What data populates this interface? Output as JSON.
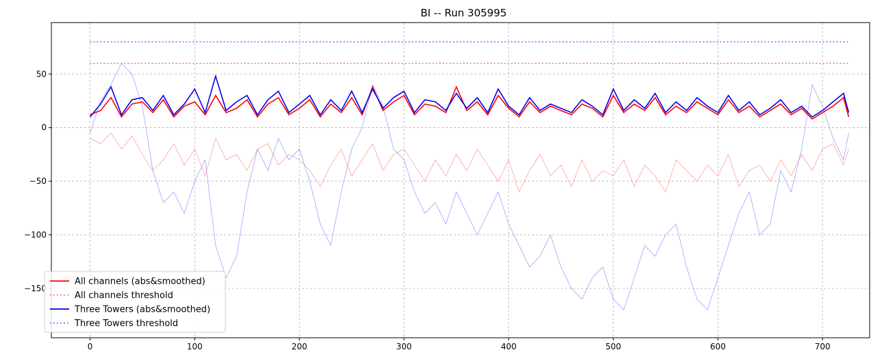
{
  "chart_data": {
    "type": "line",
    "title": "BI -- Run 305995",
    "xlabel": "",
    "ylabel": "",
    "xlim": [
      -37,
      745
    ],
    "ylim": [
      -196,
      98
    ],
    "xticks": [
      0,
      100,
      200,
      300,
      400,
      500,
      600,
      700
    ],
    "yticks": [
      -150,
      -100,
      -50,
      0,
      50
    ],
    "grid": true,
    "legend_position": "lower-left",
    "series": [
      {
        "name": "All channels (abs&smoothed)",
        "color": "#ff0000",
        "style": "solid",
        "x": [
          0,
          10,
          20,
          30,
          40,
          50,
          60,
          70,
          80,
          90,
          100,
          110,
          120,
          130,
          140,
          150,
          160,
          170,
          180,
          190,
          200,
          210,
          220,
          230,
          240,
          250,
          260,
          270,
          280,
          290,
          300,
          310,
          320,
          330,
          340,
          350,
          360,
          370,
          380,
          390,
          400,
          410,
          420,
          430,
          440,
          450,
          460,
          470,
          480,
          490,
          500,
          510,
          520,
          530,
          540,
          550,
          560,
          570,
          580,
          590,
          600,
          610,
          620,
          630,
          640,
          650,
          660,
          670,
          680,
          690,
          700,
          710,
          720,
          725
        ],
        "values": [
          12,
          16,
          28,
          10,
          22,
          24,
          14,
          26,
          10,
          20,
          24,
          12,
          30,
          14,
          18,
          26,
          10,
          22,
          28,
          12,
          18,
          26,
          10,
          22,
          14,
          28,
          12,
          38,
          16,
          24,
          30,
          12,
          22,
          20,
          14,
          38,
          16,
          24,
          12,
          30,
          18,
          10,
          24,
          14,
          20,
          16,
          12,
          22,
          18,
          10,
          30,
          14,
          22,
          16,
          28,
          12,
          20,
          14,
          24,
          18,
          12,
          26,
          14,
          20,
          10,
          16,
          22,
          12,
          18,
          8,
          14,
          20,
          28,
          10
        ]
      },
      {
        "name": "All channels threshold",
        "color": "#ff6666",
        "style": "dotted",
        "x": [
          0,
          725
        ],
        "values": [
          60,
          60
        ]
      },
      {
        "name": "Three Towers (abs&smoothed)",
        "color": "#0000ee",
        "style": "solid",
        "x": [
          0,
          10,
          20,
          30,
          40,
          50,
          60,
          70,
          80,
          90,
          100,
          110,
          120,
          130,
          140,
          150,
          160,
          170,
          180,
          190,
          200,
          210,
          220,
          230,
          240,
          250,
          260,
          270,
          280,
          290,
          300,
          310,
          320,
          330,
          340,
          350,
          360,
          370,
          380,
          390,
          400,
          410,
          420,
          430,
          440,
          450,
          460,
          470,
          480,
          490,
          500,
          510,
          520,
          530,
          540,
          550,
          560,
          570,
          580,
          590,
          600,
          610,
          620,
          630,
          640,
          650,
          660,
          670,
          680,
          690,
          700,
          710,
          720,
          725
        ],
        "values": [
          10,
          22,
          38,
          12,
          26,
          28,
          16,
          30,
          12,
          22,
          36,
          14,
          48,
          16,
          24,
          30,
          12,
          26,
          34,
          14,
          22,
          30,
          12,
          26,
          16,
          34,
          14,
          36,
          18,
          28,
          34,
          14,
          26,
          24,
          16,
          32,
          18,
          28,
          14,
          36,
          20,
          12,
          28,
          16,
          22,
          18,
          14,
          26,
          20,
          12,
          36,
          16,
          26,
          18,
          32,
          14,
          24,
          16,
          28,
          20,
          14,
          30,
          16,
          24,
          12,
          18,
          26,
          14,
          20,
          10,
          16,
          24,
          32,
          14
        ]
      },
      {
        "name": "Three Towers threshold",
        "color": "#6666ff",
        "style": "dotted",
        "x": [
          0,
          725
        ],
        "values": [
          80,
          80
        ]
      },
      {
        "name": "",
        "color": "#ff8080",
        "style": "thin",
        "x": [
          0,
          10,
          20,
          30,
          40,
          50,
          60,
          70,
          80,
          90,
          100,
          110,
          120,
          130,
          140,
          150,
          160,
          170,
          180,
          190,
          200,
          210,
          220,
          230,
          240,
          250,
          260,
          270,
          280,
          290,
          300,
          310,
          320,
          330,
          340,
          350,
          360,
          370,
          380,
          390,
          400,
          410,
          420,
          430,
          440,
          450,
          460,
          470,
          480,
          490,
          500,
          510,
          520,
          530,
          540,
          550,
          560,
          570,
          580,
          590,
          600,
          610,
          620,
          630,
          640,
          650,
          660,
          670,
          680,
          690,
          700,
          710,
          720,
          725
        ],
        "values": [
          -10,
          -15,
          -5,
          -20,
          -8,
          -25,
          -40,
          -30,
          -15,
          -35,
          -20,
          -45,
          -10,
          -30,
          -25,
          -40,
          -20,
          -15,
          -35,
          -25,
          -30,
          -40,
          -55,
          -35,
          -20,
          -45,
          -30,
          -15,
          -40,
          -25,
          -20,
          -35,
          -50,
          -30,
          -45,
          -25,
          -40,
          -20,
          -35,
          -50,
          -30,
          -60,
          -40,
          -25,
          -45,
          -35,
          -55,
          -30,
          -50,
          -40,
          -45,
          -30,
          -55,
          -35,
          -45,
          -60,
          -30,
          -40,
          -50,
          -35,
          -45,
          -25,
          -55,
          -40,
          -35,
          -50,
          -30,
          -45,
          -25,
          -40,
          -20,
          -15,
          -35,
          -20
        ]
      },
      {
        "name": "",
        "color": "#8080ff",
        "style": "thin",
        "x": [
          0,
          10,
          20,
          30,
          40,
          50,
          60,
          70,
          80,
          90,
          100,
          110,
          120,
          130,
          140,
          150,
          160,
          170,
          180,
          190,
          200,
          210,
          220,
          230,
          240,
          250,
          260,
          270,
          280,
          290,
          300,
          310,
          320,
          330,
          340,
          350,
          360,
          370,
          380,
          390,
          400,
          410,
          420,
          430,
          440,
          450,
          460,
          470,
          480,
          490,
          500,
          510,
          520,
          530,
          540,
          550,
          560,
          570,
          580,
          590,
          600,
          610,
          620,
          630,
          640,
          650,
          660,
          670,
          680,
          690,
          700,
          710,
          720,
          725
        ],
        "values": [
          -5,
          25,
          40,
          60,
          50,
          20,
          -40,
          -70,
          -60,
          -80,
          -50,
          -30,
          -110,
          -140,
          -120,
          -60,
          -20,
          -40,
          -10,
          -30,
          -20,
          -50,
          -90,
          -110,
          -60,
          -20,
          0,
          40,
          20,
          -20,
          -30,
          -60,
          -80,
          -70,
          -90,
          -60,
          -80,
          -100,
          -80,
          -60,
          -90,
          -110,
          -130,
          -120,
          -100,
          -130,
          -150,
          -160,
          -140,
          -130,
          -160,
          -170,
          -140,
          -110,
          -120,
          -100,
          -90,
          -130,
          -160,
          -170,
          -140,
          -110,
          -80,
          -60,
          -100,
          -90,
          -40,
          -60,
          -20,
          40,
          20,
          -10,
          -30,
          -5
        ]
      }
    ]
  }
}
